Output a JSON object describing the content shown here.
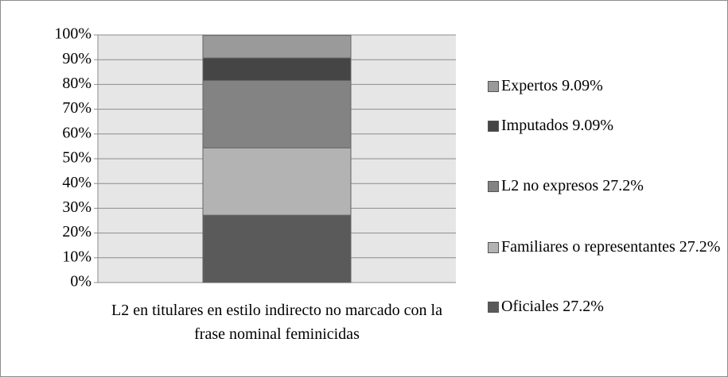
{
  "chart_data": {
    "type": "bar",
    "stacked": true,
    "categories": [
      "L2 en titulares en estilo indirecto no marcado con la frase nominal feminicidas"
    ],
    "series": [
      {
        "name": "Oficiales 27.2%",
        "color": "#5a5a5a",
        "values": [
          27.2
        ]
      },
      {
        "name": "Familiares o representantes 27.2%",
        "color": "#b3b3b3",
        "values": [
          27.2
        ]
      },
      {
        "name": "L2 no expresos 27.2%",
        "color": "#838383",
        "values": [
          27.2
        ]
      },
      {
        "name": "Imputados 9.09%",
        "color": "#454545",
        "values": [
          9.09
        ]
      },
      {
        "name": "Expertos 9.09%",
        "color": "#9a9a9a",
        "values": [
          9.09
        ]
      }
    ],
    "ylim": [
      0,
      100
    ],
    "yticks": [
      {
        "value": 0,
        "label": "0%"
      },
      {
        "value": 10,
        "label": "10%"
      },
      {
        "value": 20,
        "label": "20%"
      },
      {
        "value": 30,
        "label": "30%"
      },
      {
        "value": 40,
        "label": "40%"
      },
      {
        "value": 50,
        "label": "50%"
      },
      {
        "value": 60,
        "label": "60%"
      },
      {
        "value": 70,
        "label": "70%"
      },
      {
        "value": 80,
        "label": "80%"
      },
      {
        "value": 90,
        "label": "90%"
      },
      {
        "value": 100,
        "label": "100%"
      }
    ],
    "grid": true,
    "legend": "right"
  }
}
